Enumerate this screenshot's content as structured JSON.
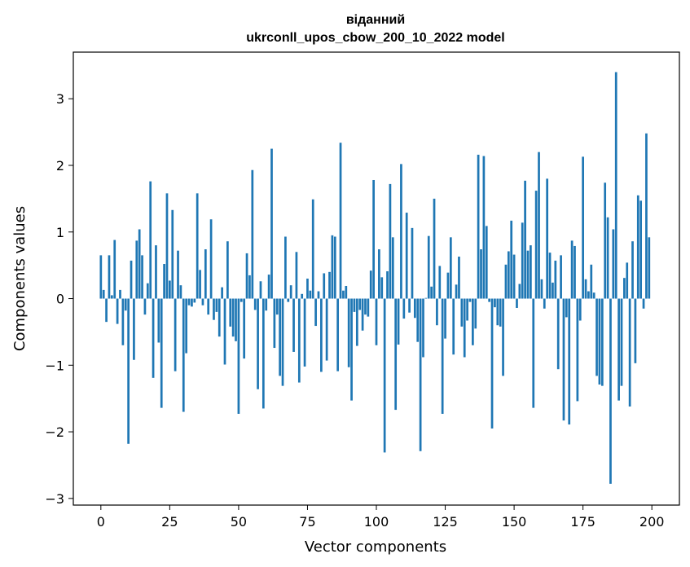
{
  "chart_data": {
    "type": "bar",
    "title": "віданний",
    "subtitle": "ukrconll_upos_cbow_200_10_2022 model",
    "xlabel": "Vector components",
    "ylabel": "Components values",
    "xlim": [
      -10,
      210
    ],
    "ylim": [
      -3.1,
      3.7
    ],
    "xticks": [
      0,
      25,
      50,
      75,
      100,
      125,
      150,
      175,
      200
    ],
    "yticks": [
      -3,
      -2,
      -1,
      0,
      1,
      2,
      3
    ],
    "grid": false,
    "legend": "none",
    "bar_color": "#1f77b4",
    "values": [
      0.65,
      0.13,
      -0.35,
      0.65,
      0.05,
      0.88,
      -0.38,
      0.13,
      -0.7,
      -0.18,
      -2.18,
      0.57,
      -0.92,
      0.87,
      1.04,
      0.65,
      -0.24,
      0.23,
      1.76,
      -1.19,
      0.8,
      -0.66,
      -1.64,
      0.52,
      1.58,
      0.27,
      1.33,
      -1.09,
      0.72,
      0.2,
      -1.7,
      -0.82,
      -0.1,
      -0.12,
      -0.06,
      1.58,
      0.43,
      -0.1,
      0.74,
      -0.24,
      1.19,
      -0.32,
      -0.2,
      -0.57,
      0.17,
      -0.99,
      0.86,
      -0.42,
      -0.57,
      -0.64,
      -1.73,
      -0.05,
      -0.9,
      0.68,
      0.35,
      1.93,
      -0.17,
      -1.36,
      0.26,
      -1.65,
      -0.18,
      0.36,
      2.25,
      -0.74,
      -0.24,
      -1.16,
      -1.31,
      0.93,
      -0.05,
      0.2,
      -0.8,
      0.7,
      -1.26,
      0.07,
      -1.02,
      0.3,
      0.12,
      1.49,
      -0.41,
      0.11,
      -1.1,
      0.38,
      -0.93,
      0.4,
      0.95,
      0.93,
      -1.09,
      2.34,
      0.12,
      0.19,
      -1.03,
      -1.53,
      -0.2,
      -0.71,
      -0.17,
      -0.48,
      -0.24,
      -0.27,
      0.42,
      1.78,
      -0.7,
      0.74,
      0.32,
      -2.31,
      0.41,
      1.72,
      0.92,
      -1.67,
      -0.69,
      2.02,
      -0.3,
      1.29,
      -0.21,
      1.06,
      -0.29,
      -0.65,
      -2.29,
      -0.88,
      0.01,
      0.94,
      0.18,
      1.5,
      -0.4,
      0.49,
      -1.73,
      -0.6,
      0.39,
      0.92,
      -0.84,
      0.21,
      0.63,
      -0.42,
      -0.88,
      -0.33,
      -0.05,
      -0.7,
      -0.45,
      2.16,
      0.74,
      2.14,
      1.09,
      -0.05,
      -1.95,
      -0.13,
      -0.4,
      -0.42,
      -1.16,
      0.51,
      0.71,
      1.17,
      0.66,
      -0.14,
      0.22,
      1.14,
      1.77,
      0.72,
      0.8,
      -1.64,
      1.62,
      2.2,
      0.29,
      -0.15,
      1.8,
      0.69,
      0.24,
      0.57,
      -1.06,
      0.65,
      -1.83,
      -0.28,
      -1.89,
      0.87,
      0.79,
      -1.54,
      -0.33,
      2.13,
      0.29,
      0.11,
      0.51,
      0.09,
      -1.16,
      -1.29,
      -1.31,
      1.74,
      1.22,
      -2.78,
      1.04,
      3.4,
      -1.53,
      -1.31,
      0.31,
      0.54,
      -1.62,
      0.86,
      -0.97,
      1.55,
      1.47,
      -0.15,
      2.48,
      0.92
    ]
  }
}
